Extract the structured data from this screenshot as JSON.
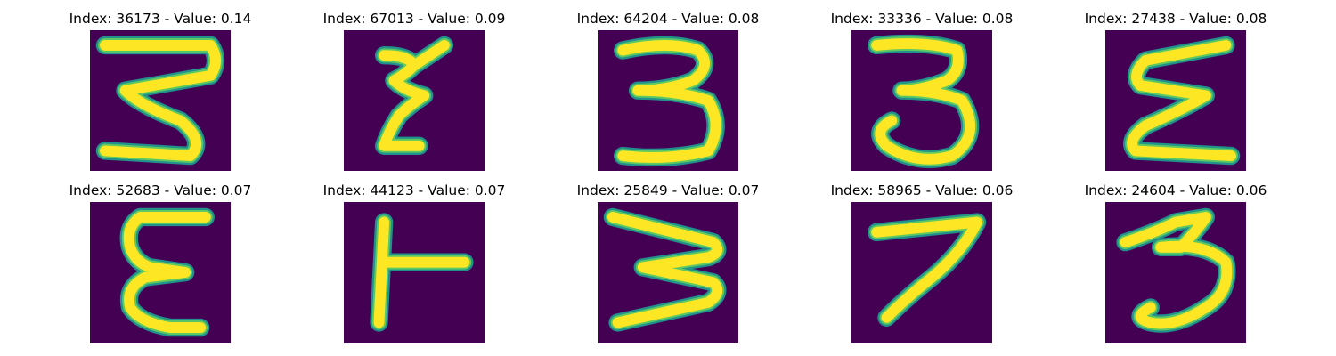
{
  "colors": {
    "background": "#440154",
    "stroke_edge": "#21918c",
    "stroke_mid": "#5ec962",
    "stroke_core": "#fde725"
  },
  "panels": [
    {
      "title": "Index: 36173 - Value: 0.14",
      "glyph": "rotated-m-like zigzag handwritten character",
      "strokes": [
        "M3,3 L24,3 Q26,6 24,9 L7,12 Q10,15 18,18 Q23,22 20,25 L3,24"
      ]
    },
    {
      "title": "Index: 67013 - Value: 0.09",
      "glyph": "narrow zigzag handwritten character",
      "strokes": [
        "M8,5 Q13,5 14,7 Q12,9 10,10 Q12,12 16,13 Q13,15 11,17 Q9,20 8,23 L15,23",
        "M14,7 L20,3"
      ]
    },
    {
      "title": "Index: 64204 - Value: 0.08",
      "glyph": "handwritten digit 3",
      "strokes": [
        "M5,4 Q14,2 20,4 Q23,7 19,10 Q14,12 8,12 Q16,12 22,14 Q25,19 22,24 Q14,26 5,25"
      ]
    },
    {
      "title": "Index: 33336 - Value: 0.08",
      "glyph": "handwritten digit 3",
      "strokes": [
        "M5,3 Q15,2 21,4 Q22,8 19,10 Q14,12 10,12 Q17,12 22,14 Q26,21 20,25 Q13,27 7,23 Q4,20 8,18"
      ]
    },
    {
      "title": "Index: 27438 - Value: 0.08",
      "glyph": "mirrored zigzag handwritten character",
      "strokes": [
        "M24,3 L8,6 Q5,9 7,11 L20,13 Q15,16 8,19 Q4,22 6,24 L25,25"
      ]
    },
    {
      "title": "Index: 52683 - Value: 0.07",
      "glyph": "handwritten epsilon-like character",
      "strokes": [
        "M23,3 L10,3 Q7,5 8,9 Q9,12 12,13 L19,14 L11,15 Q7,17 8,21 Q10,24 16,25 L22,25"
      ]
    },
    {
      "title": "Index: 44123 - Value: 0.07",
      "glyph": "handwritten T-like character rotated",
      "strokes": [
        "M8,4 L7,24",
        "M8,12 L24,12"
      ]
    },
    {
      "title": "Index: 25849 - Value: 0.07",
      "glyph": "handwritten w-like zigzag character",
      "strokes": [
        "M3,3 L23,8 Q25,10 22,11 L9,13 L23,16 Q25,18 22,20 L4,24"
      ]
    },
    {
      "title": "Index: 58965 - Value: 0.06",
      "glyph": "handwritten digit 7",
      "strokes": [
        "M5,6 L25,4 Q22,10 16,15 Q11,19 7,23"
      ]
    },
    {
      "title": "Index: 24604 - Value: 0.06",
      "glyph": "handwritten digit 3",
      "strokes": [
        "M4,8 Q10,6 14,4 L20,3 Q18,6 15,9 L11,9 Q20,8 24,12 Q25,18 20,21 Q14,25 9,24 Q5,23 9,21"
      ]
    }
  ]
}
